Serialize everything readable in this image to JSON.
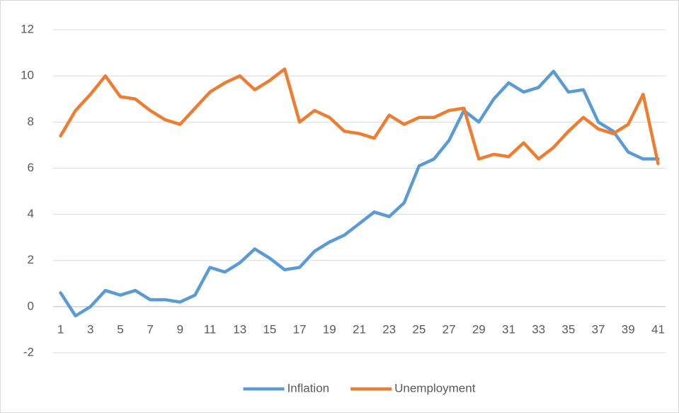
{
  "chart_data": {
    "type": "line",
    "categories": [
      "1",
      null,
      "3",
      null,
      "5",
      null,
      "7",
      null,
      "9",
      null,
      "11",
      null,
      "13",
      null,
      "15",
      null,
      "17",
      null,
      "19",
      null,
      "21",
      null,
      "23",
      null,
      "25",
      null,
      "27",
      null,
      "29",
      null,
      "31",
      null,
      "33",
      null,
      "35",
      null,
      "37",
      null,
      "39",
      null,
      "41"
    ],
    "series": [
      {
        "name": "Inflation",
        "color": "#5b9bd5",
        "values": [
          0.6,
          -0.4,
          0.0,
          0.7,
          0.5,
          0.7,
          0.3,
          0.3,
          0.2,
          0.5,
          1.7,
          1.5,
          1.9,
          2.5,
          2.1,
          1.6,
          1.7,
          2.4,
          2.8,
          3.1,
          3.6,
          4.1,
          3.9,
          4.5,
          6.1,
          6.4,
          7.2,
          8.5,
          8.0,
          9.0,
          9.7,
          9.3,
          9.5,
          10.2,
          9.3,
          9.4,
          8.0,
          7.6,
          6.7,
          6.4,
          6.4
        ]
      },
      {
        "name": "Unemployment",
        "color": "#ed7d31",
        "values": [
          7.4,
          8.5,
          9.2,
          10.0,
          9.1,
          9.0,
          8.5,
          8.1,
          7.9,
          8.6,
          9.3,
          9.7,
          10.0,
          9.4,
          9.8,
          10.3,
          8.0,
          8.5,
          8.2,
          7.6,
          7.5,
          7.3,
          8.3,
          7.9,
          8.2,
          8.2,
          8.5,
          8.6,
          6.4,
          6.6,
          6.5,
          7.1,
          6.4,
          6.9,
          7.6,
          8.2,
          7.7,
          7.5,
          7.9,
          9.2,
          6.2
        ]
      }
    ],
    "ylim": [
      -2,
      12
    ],
    "yticks": [
      -2,
      0,
      2,
      4,
      6,
      8,
      10,
      12
    ],
    "grid": true,
    "legend": "bottom"
  }
}
